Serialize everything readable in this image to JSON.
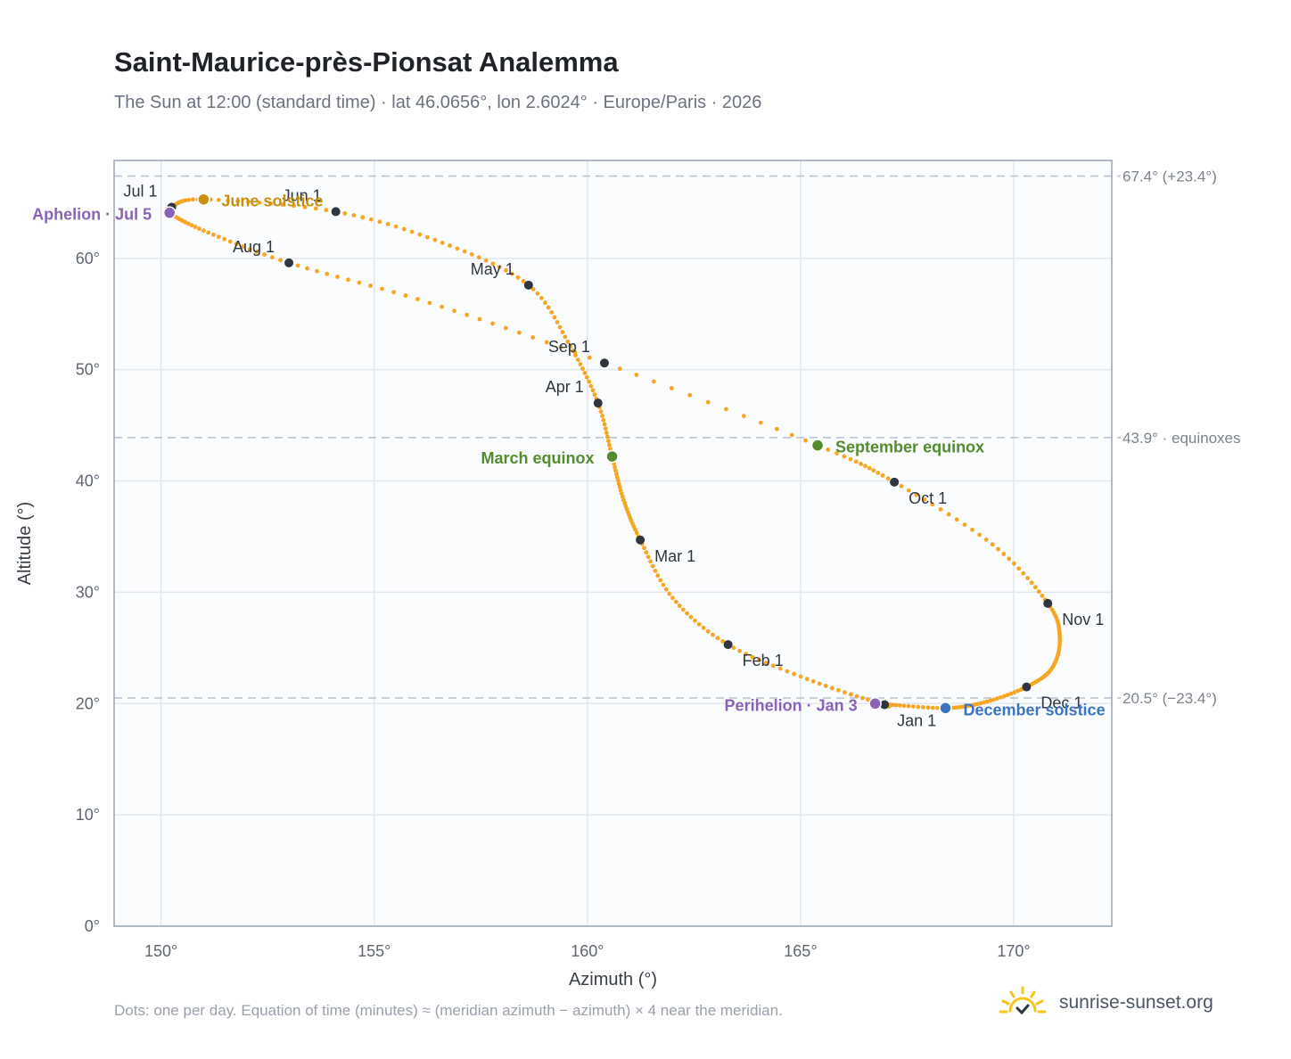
{
  "header": {
    "title": "Saint-Maurice-près-Pionsat Analemma",
    "subtitle": "The Sun at 12:00 (standard time) · lat 46.0656°, lon 2.6024° · Europe/Paris · 2026"
  },
  "footer": {
    "note": "Dots: one per day. Equation of time (minutes) ≈ (meridian azimuth − azimuth) × 4 near the meridian.",
    "brand": "sunrise-sunset.org"
  },
  "colors": {
    "path": "#f5a623",
    "month_marker": "#2f3640",
    "solstice_june": "#c8900f",
    "solstice_december": "#3b74c0",
    "equinox": "#548b2f",
    "apsis": "#8a63b8",
    "plot_bg": "#fafcfe",
    "grid": "#e3e8ee",
    "reference_line": "#b8c2cc",
    "brand_sun": "#f5c518"
  },
  "chart_data": {
    "type": "scatter",
    "xlabel": "Azimuth (°)",
    "ylabel": "Altitude (°)",
    "xlim": [
      148.9,
      172.3
    ],
    "ylim": [
      0,
      68.8
    ],
    "x_ticks": [
      150,
      155,
      160,
      165,
      170
    ],
    "x_tick_labels": [
      "150°",
      "155°",
      "160°",
      "165°",
      "170°"
    ],
    "y_ticks": [
      0,
      10,
      20,
      30,
      40,
      50,
      60
    ],
    "y_tick_labels": [
      "0°",
      "10°",
      "20°",
      "30°",
      "40°",
      "50°",
      "60°"
    ],
    "grid": true,
    "reference_lines": [
      {
        "y": 67.4,
        "label": "67.4° (+23.4°)"
      },
      {
        "y": 43.9,
        "label": "43.9° · equinoxes"
      },
      {
        "y": 20.5,
        "label": "20.5° (−23.4°)"
      }
    ],
    "analemma_path": [
      {
        "date": "Jan 1",
        "az": 166.97,
        "alt": 19.9
      },
      {
        "date": "Jan 16",
        "az": 165.3,
        "alt": 22.0
      },
      {
        "date": "Feb 1",
        "az": 163.3,
        "alt": 25.3
      },
      {
        "date": "Feb 15",
        "az": 162.0,
        "alt": 29.5
      },
      {
        "date": "Mar 1",
        "az": 161.24,
        "alt": 34.7
      },
      {
        "date": "Mar 10",
        "az": 160.85,
        "alt": 38.3
      },
      {
        "date": "Mar 20",
        "az": 160.58,
        "alt": 42.2
      },
      {
        "date": "Apr 1",
        "az": 160.25,
        "alt": 47.0
      },
      {
        "date": "Apr 15",
        "az": 159.6,
        "alt": 52.1
      },
      {
        "date": "May 1",
        "az": 158.62,
        "alt": 57.6
      },
      {
        "date": "May 15",
        "az": 156.6,
        "alt": 61.4
      },
      {
        "date": "Jun 1",
        "az": 154.1,
        "alt": 64.2
      },
      {
        "date": "Jun 21",
        "az": 151.0,
        "alt": 65.3
      },
      {
        "date": "Jul 1",
        "az": 150.25,
        "alt": 64.6
      },
      {
        "date": "Jul 5",
        "az": 150.2,
        "alt": 64.1
      },
      {
        "date": "Jul 15",
        "az": 151.0,
        "alt": 62.5
      },
      {
        "date": "Aug 1",
        "az": 153.0,
        "alt": 59.6
      },
      {
        "date": "Aug 15",
        "az": 156.3,
        "alt": 56.0
      },
      {
        "date": "Sep 1",
        "az": 160.4,
        "alt": 50.6
      },
      {
        "date": "Sep 23",
        "az": 165.4,
        "alt": 43.2
      },
      {
        "date": "Oct 1",
        "az": 167.2,
        "alt": 39.9
      },
      {
        "date": "Oct 15",
        "az": 169.5,
        "alt": 34.3
      },
      {
        "date": "Nov 1",
        "az": 170.8,
        "alt": 29.0
      },
      {
        "date": "Nov 10",
        "az": 171.08,
        "alt": 26.0
      },
      {
        "date": "Nov 20",
        "az": 170.9,
        "alt": 23.2
      },
      {
        "date": "Dec 1",
        "az": 170.3,
        "alt": 21.5
      },
      {
        "date": "Dec 12",
        "az": 169.3,
        "alt": 20.1
      },
      {
        "date": "Dec 21",
        "az": 168.4,
        "alt": 19.6
      },
      {
        "date": "Dec 31",
        "az": 167.1,
        "alt": 19.9
      }
    ],
    "month_markers": [
      {
        "label": "Jan 1",
        "az": 166.97,
        "alt": 19.9,
        "anchor": "start",
        "dx": 14,
        "dy": 24
      },
      {
        "label": "Feb 1",
        "az": 163.3,
        "alt": 25.3,
        "anchor": "start",
        "dx": 16,
        "dy": 24
      },
      {
        "label": "Mar 1",
        "az": 161.24,
        "alt": 34.7,
        "anchor": "start",
        "dx": 16,
        "dy": 24
      },
      {
        "label": "Apr 1",
        "az": 160.25,
        "alt": 47.0,
        "anchor": "end",
        "dx": -16,
        "dy": -12
      },
      {
        "label": "May 1",
        "az": 158.62,
        "alt": 57.6,
        "anchor": "end",
        "dx": -16,
        "dy": -12
      },
      {
        "label": "Jun 1",
        "az": 154.1,
        "alt": 64.2,
        "anchor": "end",
        "dx": -16,
        "dy": -12
      },
      {
        "label": "Jul 1",
        "az": 150.25,
        "alt": 64.6,
        "anchor": "end",
        "dx": -16,
        "dy": -12
      },
      {
        "label": "Aug 1",
        "az": 153.0,
        "alt": 59.6,
        "anchor": "end",
        "dx": -16,
        "dy": -12
      },
      {
        "label": "Sep 1",
        "az": 160.4,
        "alt": 50.6,
        "anchor": "end",
        "dx": -16,
        "dy": -12
      },
      {
        "label": "Oct 1",
        "az": 167.2,
        "alt": 39.9,
        "anchor": "start",
        "dx": 16,
        "dy": 24
      },
      {
        "label": "Nov 1",
        "az": 170.8,
        "alt": 29.0,
        "anchor": "start",
        "dx": 16,
        "dy": 24
      },
      {
        "label": "Dec 1",
        "az": 170.3,
        "alt": 21.5,
        "anchor": "start",
        "dx": 16,
        "dy": 24
      }
    ],
    "events": [
      {
        "label": "June solstice",
        "az": 151.0,
        "alt": 65.3,
        "color_key": "solstice_june",
        "anchor": "start",
        "dx": 20,
        "dy": 8
      },
      {
        "label": "December solstice",
        "az": 168.4,
        "alt": 19.6,
        "color_key": "solstice_december",
        "anchor": "start",
        "dx": 20,
        "dy": 8
      },
      {
        "label": "March equinox",
        "az": 160.58,
        "alt": 42.2,
        "color_key": "equinox",
        "anchor": "end",
        "dx": -20,
        "dy": 8
      },
      {
        "label": "September equinox",
        "az": 165.4,
        "alt": 43.2,
        "color_key": "equinox",
        "anchor": "start",
        "dx": 20,
        "dy": 8
      },
      {
        "label": "Aphelion · Jul 5",
        "az": 150.2,
        "alt": 64.1,
        "color_key": "apsis",
        "anchor": "end",
        "dx": -20,
        "dy": 8
      },
      {
        "label": "Perihelion · Jan 3",
        "az": 166.75,
        "alt": 20.0,
        "color_key": "apsis",
        "anchor": "end",
        "dx": -20,
        "dy": 8
      }
    ]
  }
}
